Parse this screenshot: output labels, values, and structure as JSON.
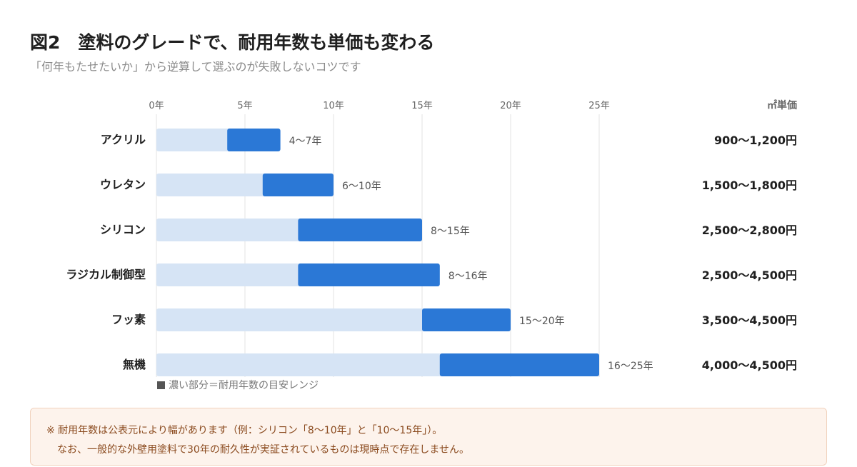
{
  "header": {
    "title": "図2　塗料のグレードで、耐用年数も単価も変わる",
    "subtitle": "「何年もたせたいか」から逆算して選ぶのが失敗しないコツです"
  },
  "chart_data": {
    "type": "bar",
    "orientation": "horizontal-range",
    "x_ticks": [
      "0年",
      "5年",
      "10年",
      "15年",
      "20年",
      "25年"
    ],
    "xlim": [
      0,
      25
    ],
    "grid": true,
    "price_header": "㎡単価",
    "colors": {
      "background_bar": "#d6e4f5",
      "range_bar": "#2b78d6",
      "grid": "#e3e3e3"
    },
    "categories": [
      "アクリル",
      "ウレタン",
      "シリコン",
      "ラジカル制御型",
      "フッ素",
      "無機"
    ],
    "series": [
      {
        "start": 4,
        "end": 7,
        "label": "4〜7年",
        "price": "900〜1,200円"
      },
      {
        "start": 6,
        "end": 10,
        "label": "6〜10年",
        "price": "1,500〜1,800円"
      },
      {
        "start": 8,
        "end": 15,
        "label": "8〜15年",
        "price": "2,500〜2,800円"
      },
      {
        "start": 8,
        "end": 16,
        "label": "8〜16年",
        "price": "2,500〜4,500円"
      },
      {
        "start": 15,
        "end": 20,
        "label": "15〜20年",
        "price": "3,500〜4,500円"
      },
      {
        "start": 16,
        "end": 25,
        "label": "16〜25年",
        "price": "4,000〜4,500円"
      }
    ],
    "legend": {
      "text": "濃い部分＝耐用年数の目安レンジ",
      "position": "bottom-left"
    }
  },
  "note": {
    "line1": "※ 耐用年数は公表元により幅があります（例：シリコン「8〜10年」と「10〜15年」）。",
    "line2": "なお、一般的な外壁用塗料で30年の耐久性が実証されているものは現時点で存在しません。"
  }
}
